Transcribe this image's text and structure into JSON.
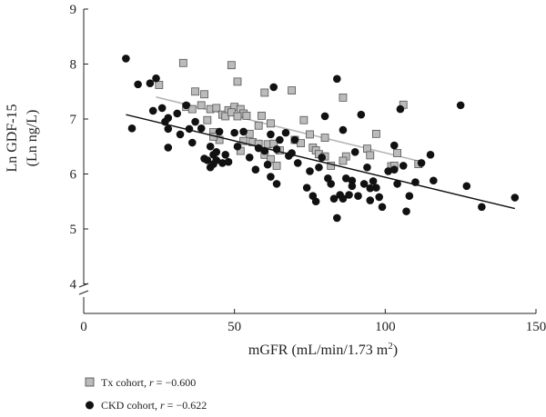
{
  "chart_data": {
    "type": "scatter",
    "xlabel": "mGFR (mL/min/1.73 m2)",
    "ylabel_line1": "Ln GDF-15",
    "ylabel_line2": "(Ln ng/L)",
    "xlim": [
      0,
      150
    ],
    "ylim": [
      4,
      9
    ],
    "x_ticks": [
      "0",
      "50",
      "100",
      "150"
    ],
    "y_ticks": [
      "4",
      "5",
      "6",
      "7",
      "8",
      "9"
    ],
    "axis_break": true,
    "grid": false,
    "legend_position": "bottom-left",
    "series": [
      {
        "name": "Tx cohort",
        "stat_label": "r",
        "stat_value": "= −0.600",
        "marker": "square",
        "color": "#bbbbbb",
        "trend": {
          "x": [
            24,
            110
          ],
          "y": [
            7.4,
            6.25
          ],
          "color": "#b5b5b5"
        },
        "points": [
          [
            25,
            7.62
          ],
          [
            33,
            8.02
          ],
          [
            49,
            7.98
          ],
          [
            51,
            7.68
          ],
          [
            37,
            7.5
          ],
          [
            40,
            7.45
          ],
          [
            34,
            7.22
          ],
          [
            36,
            7.18
          ],
          [
            39,
            7.25
          ],
          [
            42,
            7.18
          ],
          [
            44,
            7.2
          ],
          [
            46,
            7.08
          ],
          [
            48,
            7.16
          ],
          [
            50,
            7.22
          ],
          [
            52,
            7.18
          ],
          [
            53,
            7.1
          ],
          [
            54,
            7.06
          ],
          [
            47,
            7.05
          ],
          [
            49,
            7.12
          ],
          [
            51,
            7.05
          ],
          [
            60,
            7.48
          ],
          [
            69,
            7.52
          ],
          [
            73,
            6.98
          ],
          [
            75,
            6.72
          ],
          [
            80,
            6.66
          ],
          [
            59,
            7.06
          ],
          [
            62,
            6.92
          ],
          [
            41,
            6.98
          ],
          [
            43,
            6.76
          ],
          [
            45,
            6.62
          ],
          [
            43,
            6.68
          ],
          [
            55,
            6.73
          ],
          [
            56,
            6.58
          ],
          [
            58,
            6.55
          ],
          [
            61,
            6.54
          ],
          [
            63,
            6.55
          ],
          [
            65,
            6.43
          ],
          [
            70,
            6.62
          ],
          [
            72,
            6.56
          ],
          [
            76,
            6.48
          ],
          [
            77,
            6.43
          ],
          [
            78,
            6.36
          ],
          [
            80,
            6.32
          ],
          [
            82,
            6.15
          ],
          [
            87,
            6.32
          ],
          [
            86,
            7.39
          ],
          [
            94,
            6.46
          ],
          [
            95,
            6.34
          ],
          [
            97,
            6.73
          ],
          [
            104,
            6.38
          ],
          [
            106,
            7.26
          ],
          [
            102,
            6.14
          ],
          [
            103,
            6.15
          ],
          [
            111,
            6.18
          ],
          [
            60,
            6.35
          ],
          [
            62,
            6.27
          ],
          [
            64,
            6.15
          ],
          [
            53,
            6.6
          ],
          [
            58,
            6.88
          ],
          [
            52,
            6.42
          ],
          [
            86,
            6.24
          ]
        ]
      },
      {
        "name": "CKD cohort",
        "stat_label": "r",
        "stat_value": "= −0.622",
        "marker": "circle",
        "color": "#111111",
        "trend": {
          "x": [
            14,
            143
          ],
          "y": [
            7.08,
            5.37
          ],
          "color": "#111111"
        },
        "points": [
          [
            14,
            8.1
          ],
          [
            16,
            6.83
          ],
          [
            18,
            7.63
          ],
          [
            22,
            7.65
          ],
          [
            24,
            7.74
          ],
          [
            26,
            7.2
          ],
          [
            23,
            7.15
          ],
          [
            27,
            6.95
          ],
          [
            28,
            7.02
          ],
          [
            28,
            6.82
          ],
          [
            28,
            6.48
          ],
          [
            31,
            7.1
          ],
          [
            32,
            6.72
          ],
          [
            34,
            7.25
          ],
          [
            35,
            6.82
          ],
          [
            36,
            6.57
          ],
          [
            37,
            6.95
          ],
          [
            39,
            6.83
          ],
          [
            40,
            6.28
          ],
          [
            41,
            6.25
          ],
          [
            42,
            6.12
          ],
          [
            42,
            6.5
          ],
          [
            43,
            6.35
          ],
          [
            43,
            6.18
          ],
          [
            44,
            6.25
          ],
          [
            44,
            6.4
          ],
          [
            45,
            6.77
          ],
          [
            46,
            6.2
          ],
          [
            47,
            6.35
          ],
          [
            48,
            6.22
          ],
          [
            50,
            6.75
          ],
          [
            51,
            6.5
          ],
          [
            53,
            6.77
          ],
          [
            55,
            6.3
          ],
          [
            57,
            6.08
          ],
          [
            58,
            6.47
          ],
          [
            60,
            6.42
          ],
          [
            61,
            6.17
          ],
          [
            62,
            5.95
          ],
          [
            63,
            7.58
          ],
          [
            64,
            6.45
          ],
          [
            64,
            5.82
          ],
          [
            65,
            6.62
          ],
          [
            67,
            6.75
          ],
          [
            68,
            6.33
          ],
          [
            70,
            6.62
          ],
          [
            71,
            6.2
          ],
          [
            74,
            5.75
          ],
          [
            75,
            6.05
          ],
          [
            76,
            5.6
          ],
          [
            77,
            5.5
          ],
          [
            78,
            6.12
          ],
          [
            79,
            6.3
          ],
          [
            80,
            7.05
          ],
          [
            81,
            5.92
          ],
          [
            82,
            5.82
          ],
          [
            83,
            5.55
          ],
          [
            84,
            7.73
          ],
          [
            84,
            5.2
          ],
          [
            85,
            5.62
          ],
          [
            86,
            5.55
          ],
          [
            86,
            6.8
          ],
          [
            87,
            5.92
          ],
          [
            88,
            5.62
          ],
          [
            89,
            5.88
          ],
          [
            90,
            6.4
          ],
          [
            91,
            5.6
          ],
          [
            92,
            7.08
          ],
          [
            93,
            5.82
          ],
          [
            94,
            6.12
          ],
          [
            95,
            5.74
          ],
          [
            96,
            5.87
          ],
          [
            97,
            5.75
          ],
          [
            98,
            5.58
          ],
          [
            99,
            5.4
          ],
          [
            101,
            6.05
          ],
          [
            103,
            6.08
          ],
          [
            104,
            5.82
          ],
          [
            105,
            7.18
          ],
          [
            106,
            6.15
          ],
          [
            107,
            5.32
          ],
          [
            108,
            5.6
          ],
          [
            110,
            5.85
          ],
          [
            112,
            6.2
          ],
          [
            115,
            6.35
          ],
          [
            116,
            5.88
          ],
          [
            125,
            7.25
          ],
          [
            127,
            5.78
          ],
          [
            132,
            5.4
          ],
          [
            143,
            5.57
          ],
          [
            103,
            6.52
          ],
          [
            62,
            6.72
          ],
          [
            69,
            6.38
          ],
          [
            89,
            5.78
          ],
          [
            95,
            5.52
          ]
        ]
      }
    ]
  }
}
